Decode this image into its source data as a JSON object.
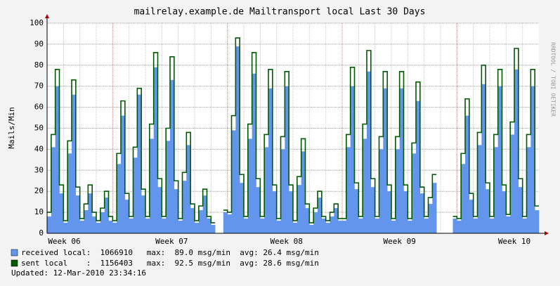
{
  "chart_data": {
    "type": "step-area",
    "title": "mailrelay.example.de Mailtransport local Last 30 Days",
    "y_label": "Mails/Min",
    "watermark": "RRDTOOL / TOBI OETIKER",
    "updated": "Updated: 12-Mar-2010 23:34:16",
    "xlim": [
      0,
      30
    ],
    "xticks": [
      {
        "value": 1.05,
        "label": "Week 06"
      },
      {
        "value": 7.6,
        "label": "Week 07"
      },
      {
        "value": 14.6,
        "label": "Week 08"
      },
      {
        "value": 21.5,
        "label": "Week 09"
      },
      {
        "value": 28.5,
        "label": "Week 10"
      }
    ],
    "major_xgrid": [
      4,
      11,
      18,
      25
    ],
    "xgrid_step": 1,
    "ylim": [
      0,
      100
    ],
    "yticks": [
      0,
      10,
      20,
      30,
      40,
      50,
      60,
      70,
      80,
      90,
      100
    ],
    "grid": true,
    "x": [
      0,
      0.25,
      0.5,
      0.75,
      1,
      1.25,
      1.5,
      1.75,
      2,
      2.25,
      2.5,
      2.75,
      3,
      3.25,
      3.5,
      3.75,
      4,
      4.25,
      4.5,
      4.75,
      5,
      5.25,
      5.5,
      5.75,
      6,
      6.25,
      6.5,
      6.75,
      7,
      7.25,
      7.5,
      7.75,
      8,
      8.25,
      8.5,
      8.75,
      9,
      9.25,
      9.5,
      9.75,
      10,
      10.25,
      10.5,
      10.75,
      11,
      11.25,
      11.5,
      11.75,
      12,
      12.25,
      12.5,
      12.75,
      13,
      13.25,
      13.5,
      13.75,
      14,
      14.25,
      14.5,
      14.75,
      15,
      15.25,
      15.5,
      15.75,
      16,
      16.25,
      16.5,
      16.75,
      17,
      17.25,
      17.5,
      17.75,
      18,
      18.25,
      18.5,
      18.75,
      19,
      19.25,
      19.5,
      19.75,
      20,
      20.25,
      20.5,
      20.75,
      21,
      21.25,
      21.5,
      21.75,
      22,
      22.25,
      22.5,
      22.75,
      23,
      23.25,
      23.5,
      23.75,
      24,
      24.25,
      24.5,
      24.75,
      25,
      25.25,
      25.5,
      25.75,
      26,
      26.25,
      26.5,
      26.75,
      27,
      27.25,
      27.5,
      27.75,
      28,
      28.25,
      28.5,
      28.75,
      29,
      29.25,
      29.5,
      29.75
    ],
    "series": [
      {
        "name": "received local",
        "legend_stats": ":  1066910   max:  89.0 msg/min  avg: 26.4 msg/min",
        "color": "#6495ed",
        "style": "area",
        "values": [
          8,
          41,
          70,
          19,
          5,
          38,
          66,
          18,
          6,
          11,
          19,
          8,
          5,
          10,
          17,
          6,
          5,
          33,
          56,
          16,
          7,
          36,
          66,
          18,
          7,
          45,
          79,
          22,
          7,
          44,
          73,
          21,
          6,
          25,
          42,
          12,
          5,
          11,
          18,
          7,
          4,
          null,
          null,
          10,
          9,
          49,
          89,
          24,
          7,
          45,
          76,
          22,
          7,
          41,
          69,
          20,
          6,
          40,
          70,
          20,
          5,
          23,
          39,
          12,
          4,
          10,
          17,
          7,
          5,
          8,
          12,
          6,
          6,
          41,
          70,
          21,
          7,
          45,
          77,
          22,
          7,
          40,
          69,
          20,
          6,
          40,
          69,
          20,
          6,
          38,
          63,
          19,
          7,
          14,
          24,
          null,
          null,
          null,
          null,
          7,
          6,
          33,
          56,
          16,
          7,
          42,
          71,
          21,
          7,
          41,
          70,
          20,
          8,
          47,
          78,
          22,
          7,
          41,
          70,
          11
        ]
      },
      {
        "name": "sent local",
        "legend_stats": "    :  1156403   max:  92.5 msg/min  avg: 28.6 msg/min",
        "color": "#005a00",
        "style": "line",
        "values": [
          10,
          47,
          78,
          23,
          6,
          44,
          73,
          22,
          7,
          14,
          23,
          10,
          6,
          12,
          20,
          8,
          6,
          38,
          63,
          19,
          8,
          41,
          69,
          21,
          8,
          52,
          86,
          26,
          8,
          50,
          84,
          25,
          7,
          29,
          48,
          14,
          6,
          13,
          21,
          8,
          5,
          null,
          null,
          11,
          10,
          56,
          93,
          28,
          8,
          52,
          86,
          26,
          8,
          47,
          78,
          23,
          7,
          46,
          77,
          23,
          6,
          27,
          45,
          14,
          5,
          12,
          20,
          8,
          6,
          10,
          14,
          7,
          7,
          47,
          79,
          24,
          8,
          52,
          87,
          26,
          8,
          46,
          77,
          23,
          7,
          46,
          77,
          23,
          7,
          43,
          72,
          22,
          8,
          17,
          28,
          null,
          null,
          null,
          null,
          8,
          7,
          38,
          64,
          19,
          8,
          48,
          80,
          24,
          8,
          47,
          78,
          23,
          9,
          53,
          88,
          26,
          8,
          47,
          78,
          13
        ]
      }
    ]
  }
}
